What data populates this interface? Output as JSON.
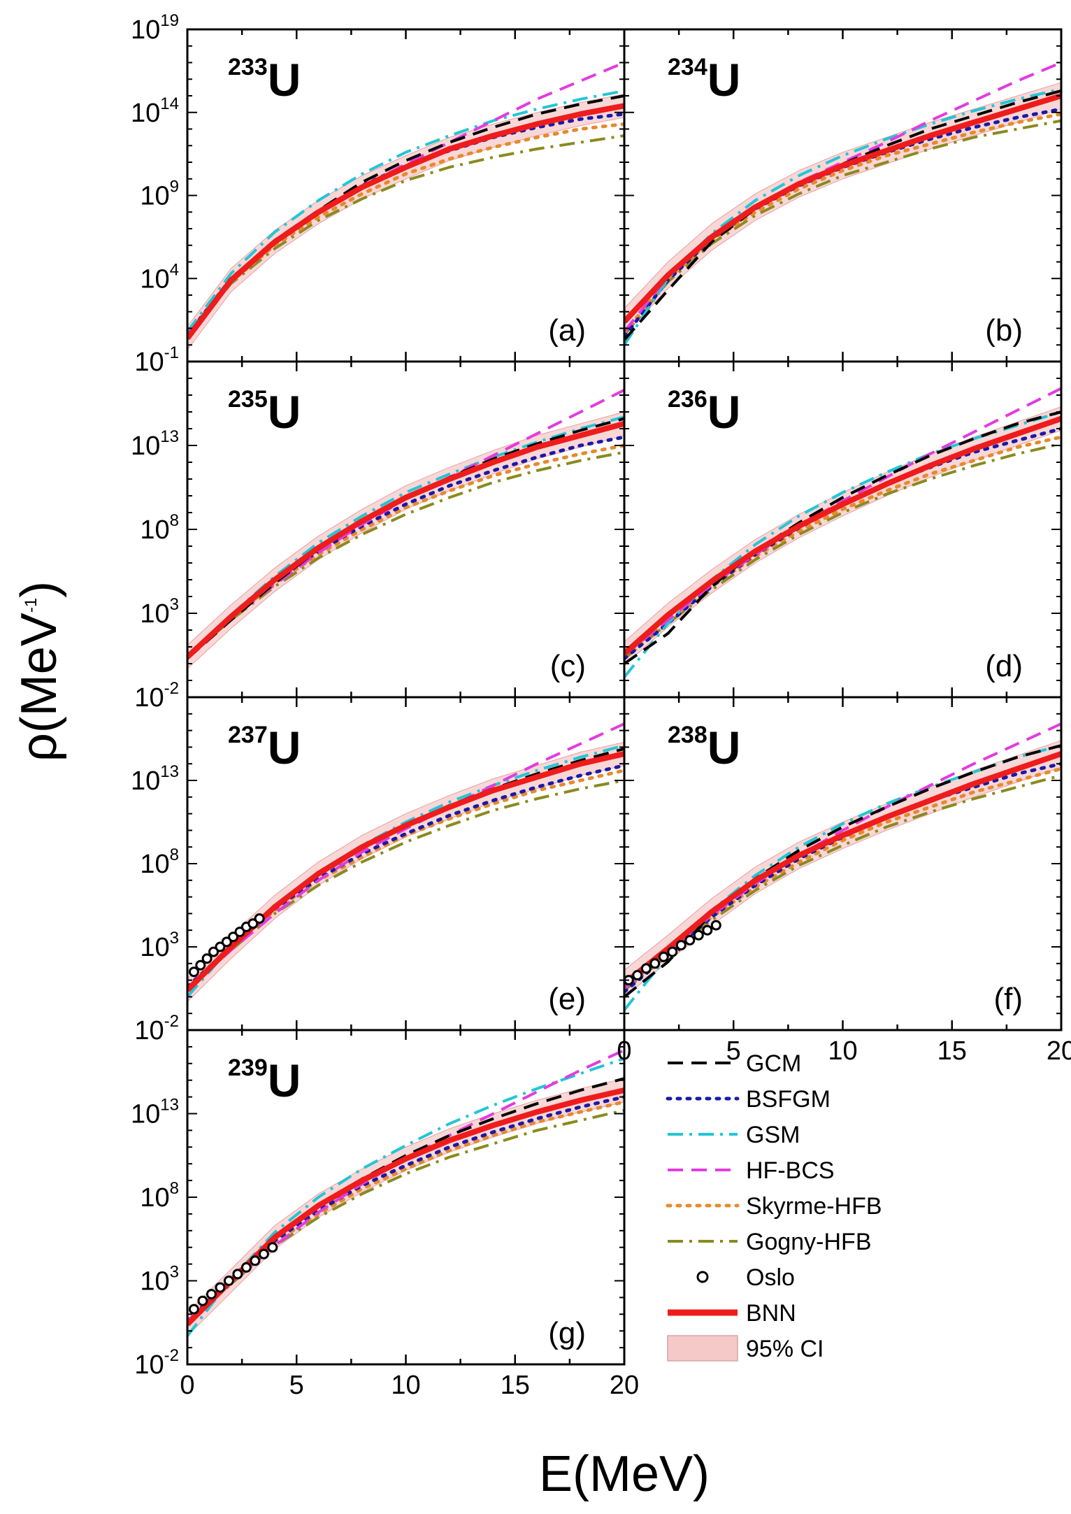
{
  "chart_data": {
    "type": "line",
    "y_scale": "log",
    "ylabel": "ρ(MeV",
    "ylabel_exp": "-1",
    "ylabel_close": ")",
    "xlabel": "E(MeV)",
    "xlim": [
      0,
      20
    ],
    "x_ticks": [
      "0",
      "5",
      "10",
      "15",
      "20"
    ],
    "legend": {
      "placement": "lower-right",
      "entries": [
        {
          "name": "GCM",
          "color": "#000000",
          "style": "dash"
        },
        {
          "name": "BSFGM",
          "color": "#1a1aa8",
          "style": "dot"
        },
        {
          "name": "GSM",
          "color": "#22c6d6",
          "style": "dashdot"
        },
        {
          "name": "HF-BCS",
          "color": "#e23ce0",
          "style": "dash"
        },
        {
          "name": "Skyrme-HFB",
          "color": "#e8892b",
          "style": "dot"
        },
        {
          "name": "Gogny-HFB",
          "color": "#8a8a20",
          "style": "dashdot"
        },
        {
          "name": "Oslo",
          "color": "#000000",
          "style": "circle"
        },
        {
          "name": "BNN",
          "color": "#ee1c1c",
          "style": "solid"
        },
        {
          "name": "95% CI",
          "color": "#f6c9c9",
          "style": "band"
        }
      ]
    },
    "panels": [
      {
        "id": "a",
        "nucleus_mass": "233",
        "nucleus_symbol": "U",
        "label": "(a)",
        "ylim_log": [
          -1,
          19
        ],
        "y_ticks": [
          {
            "base": "10",
            "exp": "-1",
            "log": -1
          },
          {
            "base": "10",
            "exp": "4",
            "log": 4
          },
          {
            "base": "10",
            "exp": "9",
            "log": 9
          },
          {
            "base": "10",
            "exp": "14",
            "log": 14
          },
          {
            "base": "10",
            "exp": "19",
            "log": 19
          }
        ],
        "x": [
          0,
          2,
          4,
          6,
          8,
          10,
          12,
          14,
          16,
          18,
          20
        ],
        "series_log": {
          "GCM": [
            0.5,
            4.0,
            6.3,
            8.1,
            9.8,
            11.1,
            12.2,
            13.1,
            13.9,
            14.5,
            15.0
          ],
          "BSFGM": [
            0.6,
            4.0,
            6.2,
            8.0,
            9.6,
            10.8,
            11.7,
            12.5,
            13.1,
            13.6,
            13.9
          ],
          "GSM": [
            0.8,
            4.3,
            6.8,
            8.7,
            10.3,
            11.6,
            12.6,
            13.5,
            14.2,
            14.8,
            15.3
          ],
          "HF-BCS": [
            0.6,
            3.9,
            6.1,
            7.9,
            9.5,
            10.9,
            12.2,
            13.5,
            14.8,
            15.9,
            17.0
          ],
          "Skyrme-HFB": [
            0.5,
            3.8,
            6.0,
            7.7,
            9.1,
            10.3,
            11.2,
            11.9,
            12.5,
            13.0,
            13.3
          ],
          "Gogny-HFB": [
            0.5,
            3.7,
            5.8,
            7.5,
            8.8,
            9.9,
            10.7,
            11.3,
            11.8,
            12.2,
            12.6
          ],
          "BNN": [
            0.4,
            3.9,
            6.2,
            8.0,
            9.5,
            10.7,
            11.8,
            12.6,
            13.3,
            13.9,
            14.4
          ]
        },
        "ci_halfwidth_log": 0.7,
        "oslo": null
      },
      {
        "id": "b",
        "nucleus_mass": "234",
        "nucleus_symbol": "U",
        "label": "(b)",
        "ylim_log": [
          -1,
          19
        ],
        "y_ticks": [],
        "x": [
          0,
          2,
          4,
          6,
          8,
          10,
          12,
          14,
          16,
          18,
          20
        ],
        "series_log": {
          "GCM": [
            0.3,
            3.3,
            6.2,
            8.2,
            9.7,
            10.9,
            12.0,
            13.0,
            13.8,
            14.6,
            15.3
          ],
          "BSFGM": [
            0.5,
            3.9,
            6.4,
            8.2,
            9.6,
            10.7,
            11.6,
            12.4,
            13.1,
            13.7,
            14.2
          ],
          "GSM": [
            0.0,
            4.0,
            6.7,
            8.7,
            10.2,
            11.4,
            12.4,
            13.3,
            14.1,
            14.8,
            15.4
          ],
          "HF-BCS": [
            0.8,
            4.1,
            6.4,
            8.3,
            9.8,
            11.0,
            12.2,
            13.5,
            14.7,
            15.9,
            17.0
          ],
          "Skyrme-HFB": [
            0.7,
            4.0,
            6.3,
            8.0,
            9.4,
            10.5,
            11.4,
            12.1,
            12.8,
            13.4,
            13.9
          ],
          "Gogny-HFB": [
            0.6,
            3.8,
            6.1,
            7.8,
            9.1,
            10.2,
            11.0,
            11.8,
            12.5,
            13.0,
            13.5
          ],
          "BNN": [
            1.4,
            4.2,
            6.5,
            8.3,
            9.7,
            10.8,
            11.7,
            12.6,
            13.4,
            14.2,
            15.0
          ]
        },
        "ci_halfwidth_log": 0.8,
        "oslo": null
      },
      {
        "id": "c",
        "nucleus_mass": "235",
        "nucleus_symbol": "U",
        "label": "(c)",
        "ylim_log": [
          -2,
          18
        ],
        "y_ticks": [
          {
            "base": "10",
            "exp": "-2",
            "log": -2
          },
          {
            "base": "10",
            "exp": "3",
            "log": 3
          },
          {
            "base": "10",
            "exp": "8",
            "log": 8
          },
          {
            "base": "10",
            "exp": "13",
            "log": 13
          }
        ],
        "x": [
          0,
          2,
          4,
          6,
          8,
          10,
          12,
          14,
          16,
          18,
          20
        ],
        "series_log": {
          "GCM": [
            0.3,
            2.6,
            4.8,
            6.8,
            8.5,
            9.9,
            11.1,
            12.2,
            13.1,
            13.9,
            14.6
          ],
          "BSFGM": [
            0.5,
            2.8,
            4.9,
            6.7,
            8.2,
            9.5,
            10.6,
            11.5,
            12.3,
            13.0,
            13.5
          ],
          "GSM": [
            0.4,
            2.9,
            5.2,
            7.2,
            8.8,
            10.2,
            11.3,
            12.3,
            13.2,
            14.0,
            14.7
          ],
          "HF-BCS": [
            0.5,
            2.7,
            4.7,
            6.6,
            8.3,
            9.8,
            11.1,
            12.4,
            13.7,
            15.0,
            16.3
          ],
          "Skyrme-HFB": [
            0.5,
            2.7,
            4.8,
            6.5,
            8.0,
            9.3,
            10.3,
            11.2,
            11.9,
            12.5,
            13.0
          ],
          "Gogny-HFB": [
            0.4,
            2.6,
            4.6,
            6.3,
            7.7,
            8.9,
            9.9,
            10.8,
            11.5,
            12.1,
            12.6
          ],
          "BNN": [
            0.4,
            2.8,
            5.0,
            6.9,
            8.5,
            9.9,
            11.0,
            12.0,
            12.9,
            13.6,
            14.3
          ]
        },
        "ci_halfwidth_log": 0.7,
        "oslo": null
      },
      {
        "id": "d",
        "nucleus_mass": "236",
        "nucleus_symbol": "U",
        "label": "(d)",
        "ylim_log": [
          -2,
          18
        ],
        "y_ticks": [],
        "x": [
          0,
          2,
          4,
          6,
          8,
          10,
          12,
          14,
          16,
          18,
          20
        ],
        "series_log": {
          "GCM": [
            0.0,
            1.8,
            4.6,
            6.7,
            8.4,
            9.9,
            11.2,
            12.4,
            13.4,
            14.3,
            15.0
          ],
          "BSFGM": [
            0.3,
            2.4,
            4.6,
            6.5,
            8.1,
            9.5,
            10.7,
            11.7,
            12.6,
            13.3,
            14.0
          ],
          "GSM": [
            -0.8,
            2.4,
            5.0,
            7.1,
            8.8,
            10.2,
            11.4,
            12.5,
            13.4,
            14.2,
            15.0
          ],
          "HF-BCS": [
            0.5,
            2.6,
            4.7,
            6.5,
            8.2,
            9.7,
            11.1,
            12.5,
            13.8,
            15.1,
            16.4
          ],
          "Skyrme-HFB": [
            0.4,
            2.5,
            4.6,
            6.4,
            7.9,
            9.2,
            10.3,
            11.3,
            12.1,
            12.9,
            13.5
          ],
          "Gogny-HFB": [
            0.3,
            2.4,
            4.4,
            6.2,
            7.7,
            9.0,
            10.1,
            11.0,
            11.8,
            12.5,
            13.1
          ],
          "BNN": [
            0.6,
            2.9,
            4.9,
            6.7,
            8.2,
            9.5,
            10.7,
            11.8,
            12.8,
            13.7,
            14.6
          ]
        },
        "ci_halfwidth_log": 0.7,
        "oslo": null
      },
      {
        "id": "e",
        "nucleus_mass": "237",
        "nucleus_symbol": "U",
        "label": "(e)",
        "ylim_log": [
          -2,
          18
        ],
        "y_ticks": [
          {
            "base": "10",
            "exp": "-2",
            "log": -2
          },
          {
            "base": "10",
            "exp": "3",
            "log": 3
          },
          {
            "base": "10",
            "exp": "8",
            "log": 8
          },
          {
            "base": "10",
            "exp": "13",
            "log": 13
          }
        ],
        "x": [
          0,
          2,
          4,
          6,
          8,
          10,
          12,
          14,
          16,
          18,
          20
        ],
        "series_log": {
          "GCM": [
            0.4,
            2.9,
            5.3,
            7.3,
            8.9,
            10.3,
            11.5,
            12.5,
            13.4,
            14.2,
            14.9
          ],
          "BSFGM": [
            0.6,
            3.0,
            5.3,
            7.1,
            8.6,
            9.8,
            10.9,
            11.8,
            12.6,
            13.3,
            13.9
          ],
          "GSM": [
            0.0,
            3.0,
            5.5,
            7.5,
            9.1,
            10.5,
            11.7,
            12.7,
            13.6,
            14.4,
            15.1
          ],
          "HF-BCS": [
            0.5,
            2.8,
            5.0,
            7.0,
            8.7,
            10.1,
            11.4,
            12.7,
            14.0,
            15.2,
            16.4
          ],
          "Skyrme-HFB": [
            0.6,
            3.0,
            5.2,
            7.0,
            8.4,
            9.7,
            10.7,
            11.6,
            12.4,
            13.0,
            13.6
          ],
          "Gogny-HFB": [
            0.5,
            2.8,
            5.0,
            6.7,
            8.1,
            9.3,
            10.3,
            11.2,
            11.9,
            12.5,
            13.0
          ],
          "BNN": [
            0.4,
            3.0,
            5.4,
            7.4,
            9.0,
            10.3,
            11.4,
            12.4,
            13.2,
            14.0,
            14.6
          ]
        },
        "ci_halfwidth_log": 0.7,
        "oslo": {
          "x": [
            0.3,
            0.6,
            0.9,
            1.2,
            1.5,
            1.8,
            2.1,
            2.4,
            2.7,
            3.0,
            3.3
          ],
          "y_log": [
            1.5,
            1.9,
            2.3,
            2.7,
            3.0,
            3.3,
            3.6,
            3.9,
            4.2,
            4.4,
            4.7
          ]
        }
      },
      {
        "id": "f",
        "nucleus_mass": "238",
        "nucleus_symbol": "U",
        "label": "(f)",
        "ylim_log": [
          -2,
          18
        ],
        "y_ticks": [],
        "x": [
          0,
          2,
          4,
          6,
          8,
          10,
          12,
          14,
          16,
          18,
          20
        ],
        "series_log": {
          "GCM": [
            0.0,
            2.1,
            5.0,
            7.1,
            8.8,
            10.2,
            11.4,
            12.5,
            13.5,
            14.4,
            15.1
          ],
          "BSFGM": [
            0.3,
            2.5,
            4.8,
            6.7,
            8.3,
            9.6,
            10.8,
            11.8,
            12.6,
            13.4,
            14.0
          ],
          "GSM": [
            -0.8,
            2.5,
            5.2,
            7.3,
            9.0,
            10.4,
            11.6,
            12.6,
            13.5,
            14.4,
            15.1
          ],
          "HF-BCS": [
            0.5,
            2.7,
            4.9,
            6.8,
            8.5,
            10.0,
            11.4,
            12.7,
            14.0,
            15.2,
            16.4
          ],
          "Skyrme-HFB": [
            0.5,
            2.6,
            4.8,
            6.6,
            8.1,
            9.4,
            10.5,
            11.4,
            12.3,
            13.0,
            13.7
          ],
          "Gogny-HFB": [
            0.4,
            2.5,
            4.6,
            6.4,
            7.9,
            9.1,
            10.2,
            11.1,
            11.9,
            12.6,
            13.3
          ],
          "BNN": [
            0.8,
            2.9,
            5.1,
            7.0,
            8.5,
            9.7,
            10.8,
            11.8,
            12.8,
            13.7,
            14.6
          ]
        },
        "ci_halfwidth_log": 0.8,
        "oslo": {
          "x": [
            0.2,
            0.6,
            1.0,
            1.4,
            1.8,
            2.2,
            2.6,
            3.0,
            3.4,
            3.8,
            4.2
          ],
          "y_log": [
            1.0,
            1.3,
            1.7,
            2.0,
            2.4,
            2.7,
            3.1,
            3.4,
            3.7,
            4.0,
            4.3
          ]
        }
      },
      {
        "id": "g",
        "nucleus_mass": "239",
        "nucleus_symbol": "U",
        "label": "(g)",
        "ylim_log": [
          -2,
          18
        ],
        "y_ticks": [
          {
            "base": "10",
            "exp": "-2",
            "log": -2
          },
          {
            "base": "10",
            "exp": "3",
            "log": 3
          },
          {
            "base": "10",
            "exp": "8",
            "log": 8
          },
          {
            "base": "10",
            "exp": "13",
            "log": 13
          }
        ],
        "x": [
          0,
          2,
          4,
          6,
          8,
          10,
          12,
          14,
          16,
          18,
          20
        ],
        "series_log": {
          "GCM": [
            0.5,
            3.0,
            5.5,
            7.5,
            9.1,
            10.5,
            11.7,
            12.7,
            13.6,
            14.4,
            15.1
          ],
          "BSFGM": [
            0.6,
            3.1,
            5.4,
            7.2,
            8.7,
            9.9,
            11.0,
            11.9,
            12.7,
            13.4,
            14.0
          ],
          "GSM": [
            -0.3,
            3.1,
            5.9,
            8.0,
            9.7,
            11.1,
            12.4,
            13.5,
            14.5,
            15.4,
            16.3
          ],
          "HF-BCS": [
            0.6,
            2.9,
            5.1,
            7.1,
            8.8,
            10.3,
            11.7,
            13.0,
            14.3,
            15.6,
            16.8
          ],
          "Skyrme-HFB": [
            0.6,
            3.0,
            5.3,
            7.0,
            8.5,
            9.7,
            10.8,
            11.7,
            12.5,
            13.1,
            13.7
          ],
          "Gogny-HFB": [
            0.5,
            2.8,
            5.1,
            6.8,
            8.2,
            9.4,
            10.4,
            11.2,
            12.0,
            12.6,
            13.2
          ],
          "BNN": [
            0.4,
            3.0,
            5.6,
            7.5,
            9.0,
            10.3,
            11.4,
            12.3,
            13.1,
            13.8,
            14.4
          ]
        },
        "ci_halfwidth_log": 0.7,
        "oslo": {
          "x": [
            0.3,
            0.7,
            1.1,
            1.5,
            1.9,
            2.3,
            2.7,
            3.1,
            3.5,
            3.9
          ],
          "y_log": [
            1.3,
            1.8,
            2.2,
            2.6,
            3.0,
            3.4,
            3.8,
            4.2,
            4.6,
            5.0
          ]
        }
      }
    ]
  }
}
